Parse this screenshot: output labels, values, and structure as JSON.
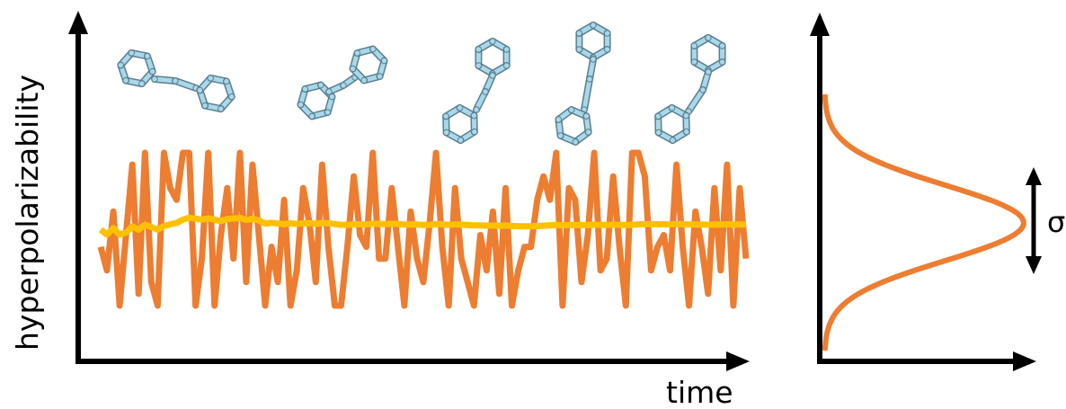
{
  "labels": {
    "y_axis": "hyperpolarizability",
    "x_axis": "time",
    "sigma": "σ"
  },
  "colors": {
    "axis": "#000000",
    "fluctuation": "#ED7D31",
    "running_mean": "#FFC000",
    "molecule_atoms": "#A8D8EA",
    "molecule_edges": "#5B7F8E"
  },
  "series": {
    "fluctuation_signal": [
      0.55,
      0.45,
      0.7,
      0.3,
      0.6,
      0.9,
      0.35,
      0.95,
      0.4,
      0.3,
      0.95,
      0.8,
      0.75,
      0.95,
      0.95,
      0.3,
      0.5,
      0.95,
      0.3,
      0.6,
      0.8,
      0.5,
      0.95,
      0.4,
      0.9,
      0.6,
      0.3,
      0.55,
      0.4,
      0.75,
      0.3,
      0.45,
      0.8,
      0.65,
      0.4,
      0.9,
      0.55,
      0.3,
      0.3,
      0.55,
      0.85,
      0.6,
      0.55,
      0.95,
      0.5,
      0.5,
      0.8,
      0.55,
      0.3,
      0.7,
      0.5,
      0.4,
      0.65,
      0.95,
      0.55,
      0.3,
      0.8,
      0.5,
      0.4,
      0.3,
      0.6,
      0.45,
      0.7,
      0.35,
      0.8,
      0.3,
      0.45,
      0.55,
      0.55,
      0.75,
      0.85,
      0.75,
      0.95,
      0.3,
      0.8,
      0.75,
      0.4,
      0.6,
      0.95,
      0.45,
      0.5,
      0.85,
      0.55,
      0.3,
      0.95,
      0.95,
      0.85,
      0.45,
      0.55,
      0.6,
      0.45,
      0.9,
      0.55,
      0.3,
      0.7,
      0.55,
      0.35,
      0.8,
      0.45,
      0.9,
      0.3,
      0.8,
      0.5
    ]
  },
  "distribution": {
    "type": "gaussian"
  }
}
